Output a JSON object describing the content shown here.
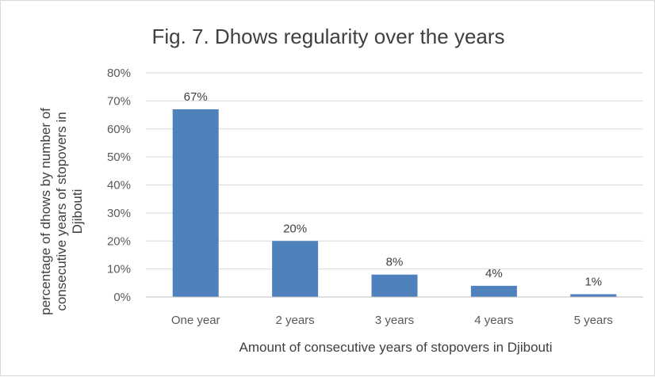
{
  "chart_data": {
    "type": "bar",
    "title": "Fig. 7. Dhows regularity over the years",
    "categories": [
      "One year",
      "2 years",
      "3 years",
      "4 years",
      "5 years"
    ],
    "values": [
      67,
      20,
      8,
      4,
      1
    ],
    "data_labels": [
      "67%",
      "20%",
      "8%",
      "4%",
      "1%"
    ],
    "xlabel": "Amount of consecutive years of stopovers in Djibouti",
    "ylabel_lines": [
      "percentage of dhows by number of",
      "consecutive years of stopovers in",
      "Djibouti"
    ],
    "ylim": [
      0,
      80
    ],
    "yticks": [
      "0%",
      "10%",
      "20%",
      "30%",
      "40%",
      "50%",
      "60%",
      "70%",
      "80%"
    ],
    "grid": true,
    "legend": "none",
    "bar_color": "#4f81bd"
  }
}
